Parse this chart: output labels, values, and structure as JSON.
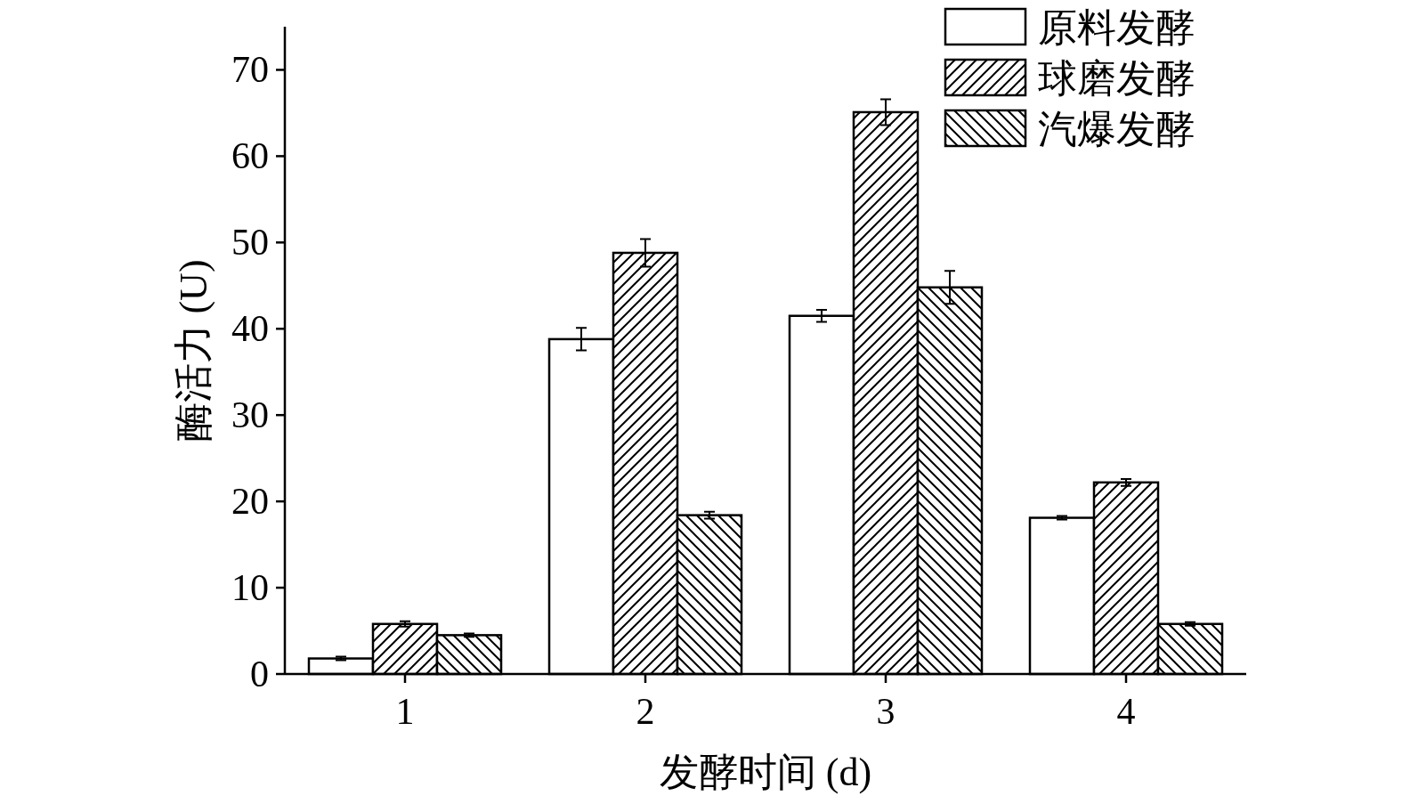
{
  "chart_data": {
    "type": "bar",
    "xlabel": "发酵时间 (d)",
    "ylabel": "酶活力 (U)",
    "categories": [
      "1",
      "2",
      "3",
      "4"
    ],
    "series": [
      {
        "name": "原料发酵",
        "color": "#ffffff",
        "values": [
          1.8,
          38.8,
          41.5,
          18.1
        ],
        "errors": [
          0.2,
          1.3,
          0.7,
          0.2
        ]
      },
      {
        "name": "球磨发酵",
        "color": "#000000",
        "values": [
          5.8,
          48.8,
          65.1,
          22.2
        ],
        "errors": [
          0.3,
          1.6,
          1.5,
          0.4
        ]
      },
      {
        "name": "汽爆发酵",
        "color": "#000000",
        "values": [
          4.5,
          18.4,
          44.8,
          5.8
        ],
        "errors": [
          0.2,
          0.4,
          1.9,
          0.2
        ]
      }
    ],
    "ylim": [
      0,
      75
    ],
    "yticks": [
      0,
      10,
      20,
      30,
      40,
      50,
      60,
      70
    ],
    "grid": false,
    "legend": "top right"
  }
}
